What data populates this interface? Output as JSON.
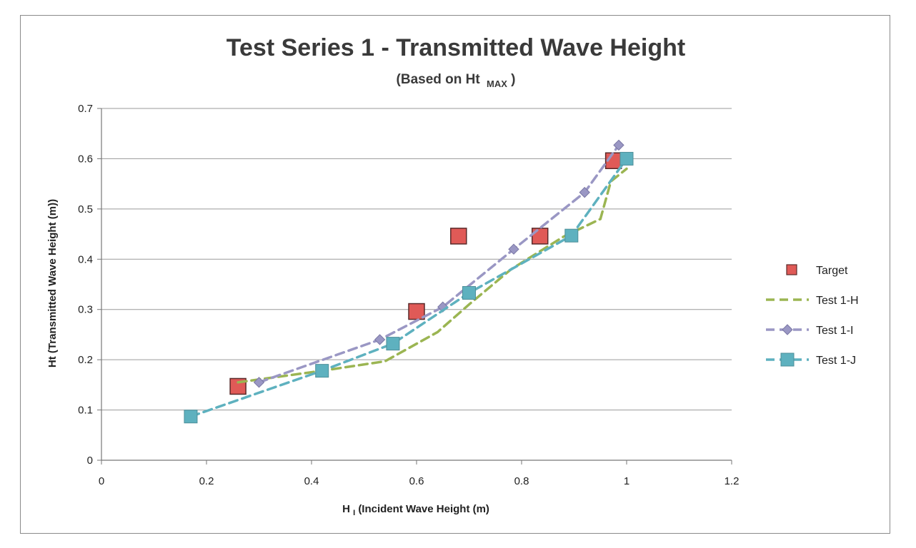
{
  "chart_data": {
    "type": "scatter",
    "title": "Test Series 1 - Transmitted Wave Height",
    "subtitle_main": "(Based on Ht",
    "subtitle_sub": "MAX",
    "subtitle_close": ")",
    "xlabel_main": "H",
    "xlabel_sub": "I",
    "xlabel_rest": " (Incident Wave Height (m)",
    "ylabel": "Ht (Transmitted Wave Height (m))",
    "xlim": [
      0,
      1.2
    ],
    "ylim": [
      0,
      0.7
    ],
    "xticks": [
      "0",
      "0.2",
      "0.4",
      "0.6",
      "0.8",
      "1",
      "1.2"
    ],
    "yticks": [
      "0",
      "0.1",
      "0.2",
      "0.3",
      "0.4",
      "0.5",
      "0.6",
      "0.7"
    ],
    "grid": true,
    "legend_position": "right",
    "series": [
      {
        "name": "Target",
        "marker": "square-large",
        "color": "#e05a57",
        "line": false,
        "points": [
          [
            0.26,
            0.147
          ],
          [
            0.6,
            0.296
          ],
          [
            0.68,
            0.446
          ],
          [
            0.835,
            0.446
          ],
          [
            0.975,
            0.596
          ]
        ]
      },
      {
        "name": "Test 1-H",
        "marker": "none",
        "color": "#9bb552",
        "line": true,
        "points": [
          [
            0.26,
            0.155
          ],
          [
            0.42,
            0.178
          ],
          [
            0.54,
            0.197
          ],
          [
            0.64,
            0.255
          ],
          [
            0.7,
            0.31
          ],
          [
            0.78,
            0.38
          ],
          [
            0.88,
            0.445
          ],
          [
            0.95,
            0.48
          ],
          [
            0.97,
            0.555
          ],
          [
            1.0,
            0.58
          ]
        ]
      },
      {
        "name": "Test 1-I",
        "marker": "diamond",
        "color": "#9a97c4",
        "line": true,
        "points": [
          [
            0.3,
            0.155
          ],
          [
            0.53,
            0.24
          ],
          [
            0.65,
            0.305
          ],
          [
            0.785,
            0.42
          ],
          [
            0.92,
            0.533
          ],
          [
            0.985,
            0.627
          ]
        ]
      },
      {
        "name": "Test 1-J",
        "marker": "square",
        "color": "#5eb1bf",
        "line": true,
        "points": [
          [
            0.17,
            0.087
          ],
          [
            0.42,
            0.178
          ],
          [
            0.555,
            0.232
          ],
          [
            0.7,
            0.333
          ],
          [
            0.895,
            0.447
          ],
          [
            1.0,
            0.6
          ]
        ]
      }
    ]
  }
}
